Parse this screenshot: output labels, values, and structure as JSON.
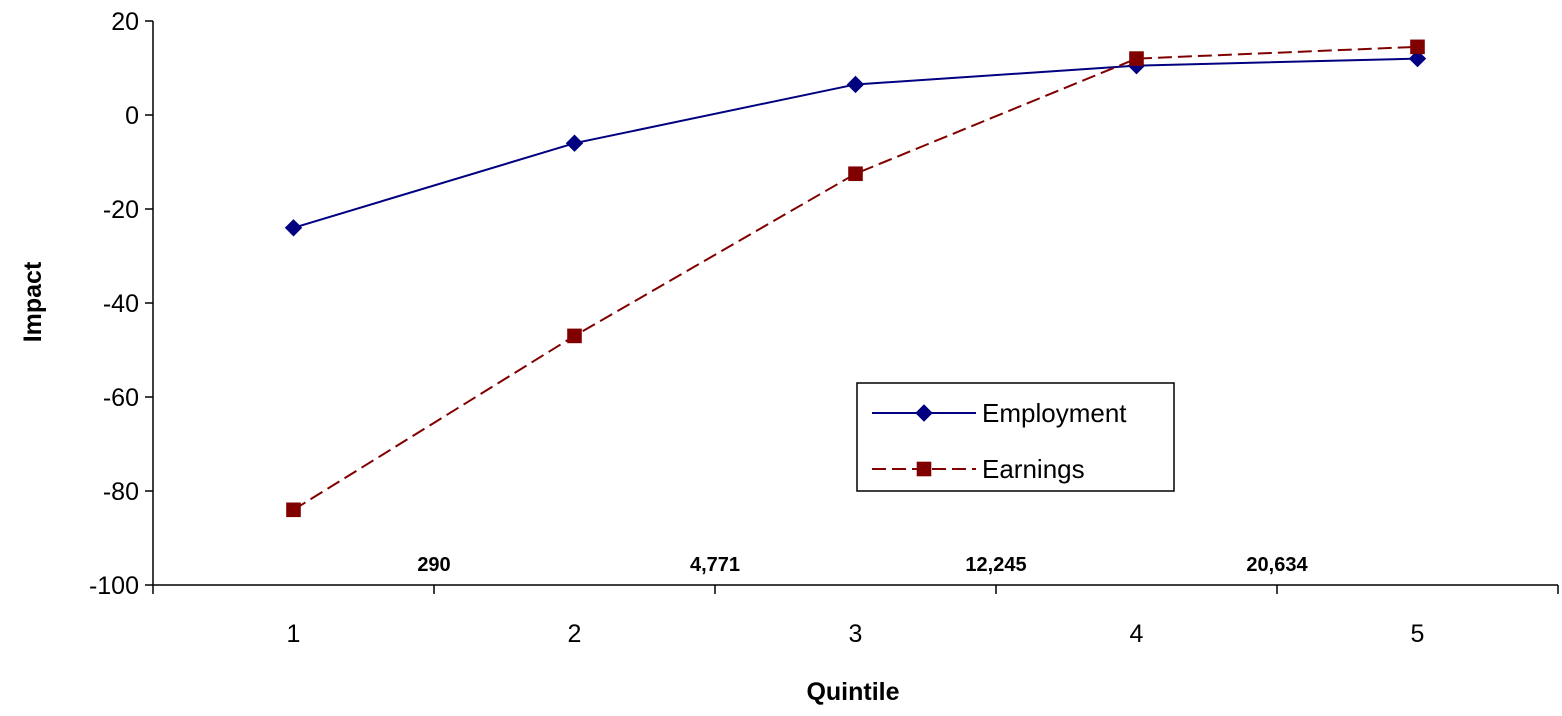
{
  "chart_data": {
    "type": "line",
    "title": "",
    "xlabel": "Quintile",
    "ylabel": "Impact",
    "ylim": [
      -100,
      20
    ],
    "y_ticks": [
      20,
      0,
      -20,
      -40,
      -60,
      -80,
      -100
    ],
    "x": [
      1,
      2,
      3,
      4,
      5
    ],
    "grid": false,
    "legend_position": "inside-lower-right",
    "series": [
      {
        "name": "Employment",
        "values": [
          -24,
          -6,
          6.5,
          10.5,
          12
        ],
        "color": "#000080",
        "line_style": "solid",
        "marker": "diamond"
      },
      {
        "name": "Earnings",
        "values": [
          -84,
          -47,
          -12.5,
          12,
          14.5
        ],
        "color": "#800000",
        "line_style": "dashed",
        "marker": "square"
      }
    ],
    "annotations": [
      "290",
      "4,771",
      "12,245",
      "20,634"
    ]
  }
}
